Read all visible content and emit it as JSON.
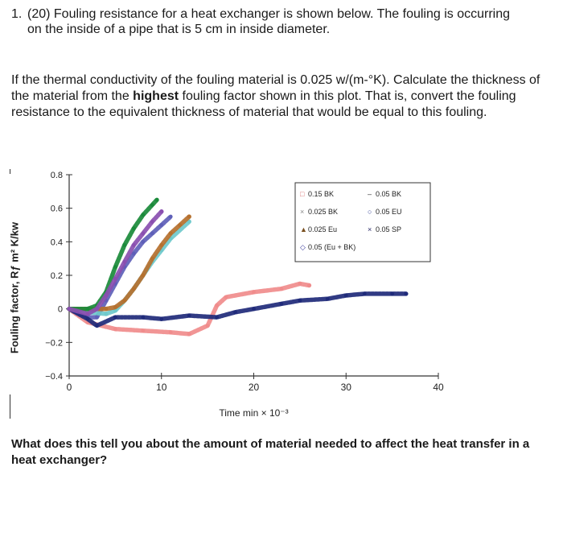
{
  "question": {
    "number": "1.",
    "header_line1": "(20) Fouling resistance for a heat exchanger is shown below.  The fouling is occurring",
    "header_line2": "on the inside of a pipe that is 5 cm in inside diameter.",
    "paragraph_part1": "If the thermal conductivity of the fouling material is 0.025 w/(m-°K).  Calculate the thickness of the material from the ",
    "paragraph_bold": "highest",
    "paragraph_part2": " fouling factor shown in this plot.  That is, convert the fouling resistance to the equivalent thickness of material that would be equal to this fouling.",
    "followup": "What does this tell you about the amount of material needed to affect the heat transfer in a heat exchanger?"
  },
  "chart_data": {
    "type": "scatter",
    "xlabel": "Time min × 10⁻³",
    "ylabel": "Fouling factor, Rƒ m² K/kw",
    "xlim": [
      0,
      40
    ],
    "ylim": [
      -0.4,
      0.8
    ],
    "xticks": [
      "0",
      "10",
      "20",
      "30",
      "40"
    ],
    "yticks": [
      "0.8",
      "0.6",
      "0.4",
      "0.2",
      "0",
      "−0.2",
      "−0.4"
    ],
    "legend_position": "top-right",
    "legend": [
      {
        "label": "0.15 BK",
        "marker": "□"
      },
      {
        "label": "0.05 BK",
        "marker": "–"
      },
      {
        "label": "0.025 BK",
        "marker": "×"
      },
      {
        "label": "0.05 EU",
        "marker": "○"
      },
      {
        "label": "0.025 Eu",
        "marker": "▲"
      },
      {
        "label": "0.05 SP",
        "marker": "×"
      },
      {
        "label": "0.05 (Eu + BK)",
        "marker": "◇"
      }
    ],
    "series": [
      {
        "name": "0.15 BK",
        "color": "#f08c8c",
        "x": [
          0,
          2,
          5,
          8,
          11,
          13,
          15,
          16,
          17,
          20,
          23,
          25,
          26
        ],
        "y": [
          0.0,
          -0.08,
          -0.12,
          -0.13,
          -0.14,
          -0.15,
          -0.1,
          0.02,
          0.07,
          0.1,
          0.12,
          0.15,
          0.14
        ]
      },
      {
        "name": "0.05 BK",
        "color": "#5e5fb8",
        "x": [
          0,
          2,
          3,
          4,
          5,
          6,
          7,
          8,
          9,
          10,
          11
        ],
        "y": [
          0.0,
          -0.05,
          -0.05,
          0.05,
          0.15,
          0.25,
          0.33,
          0.4,
          0.45,
          0.5,
          0.55
        ]
      },
      {
        "name": "0.025 BK",
        "color": "#6fc9cc",
        "x": [
          0,
          2,
          4,
          5,
          6,
          7,
          8,
          9,
          10,
          11,
          13
        ],
        "y": [
          0.0,
          -0.02,
          -0.03,
          -0.01,
          0.05,
          0.12,
          0.2,
          0.28,
          0.35,
          0.42,
          0.52
        ]
      },
      {
        "name": "0.05 EU",
        "color": "#1f2a7a",
        "x": [
          0,
          2,
          3,
          5,
          8,
          10,
          13,
          16,
          18,
          20,
          23,
          25,
          28,
          30,
          32,
          35,
          36.5
        ],
        "y": [
          0.0,
          -0.06,
          -0.1,
          -0.05,
          -0.05,
          -0.06,
          -0.04,
          -0.05,
          -0.02,
          0.0,
          0.03,
          0.05,
          0.06,
          0.08,
          0.09,
          0.09,
          0.09
        ]
      },
      {
        "name": "0.025 Eu",
        "color": "#b5702e",
        "x": [
          0,
          2,
          4,
          5,
          6,
          7,
          8,
          9,
          10,
          11,
          12,
          13
        ],
        "y": [
          0.0,
          0.0,
          0.0,
          0.01,
          0.05,
          0.12,
          0.2,
          0.3,
          0.38,
          0.45,
          0.5,
          0.55
        ]
      },
      {
        "name": "0.05 SP",
        "color": "#1a8a3a",
        "x": [
          0,
          2,
          3,
          4,
          5,
          6,
          7,
          8,
          9,
          9.5
        ],
        "y": [
          0.0,
          0.0,
          0.02,
          0.1,
          0.25,
          0.38,
          0.48,
          0.56,
          0.62,
          0.65
        ]
      },
      {
        "name": "0.05 (Eu + BK)",
        "color": "#8a4fb0",
        "x": [
          0,
          2,
          3,
          4,
          5,
          6,
          7,
          8,
          9,
          10
        ],
        "y": [
          0.0,
          -0.03,
          0.0,
          0.08,
          0.18,
          0.28,
          0.38,
          0.45,
          0.52,
          0.58
        ]
      }
    ]
  }
}
